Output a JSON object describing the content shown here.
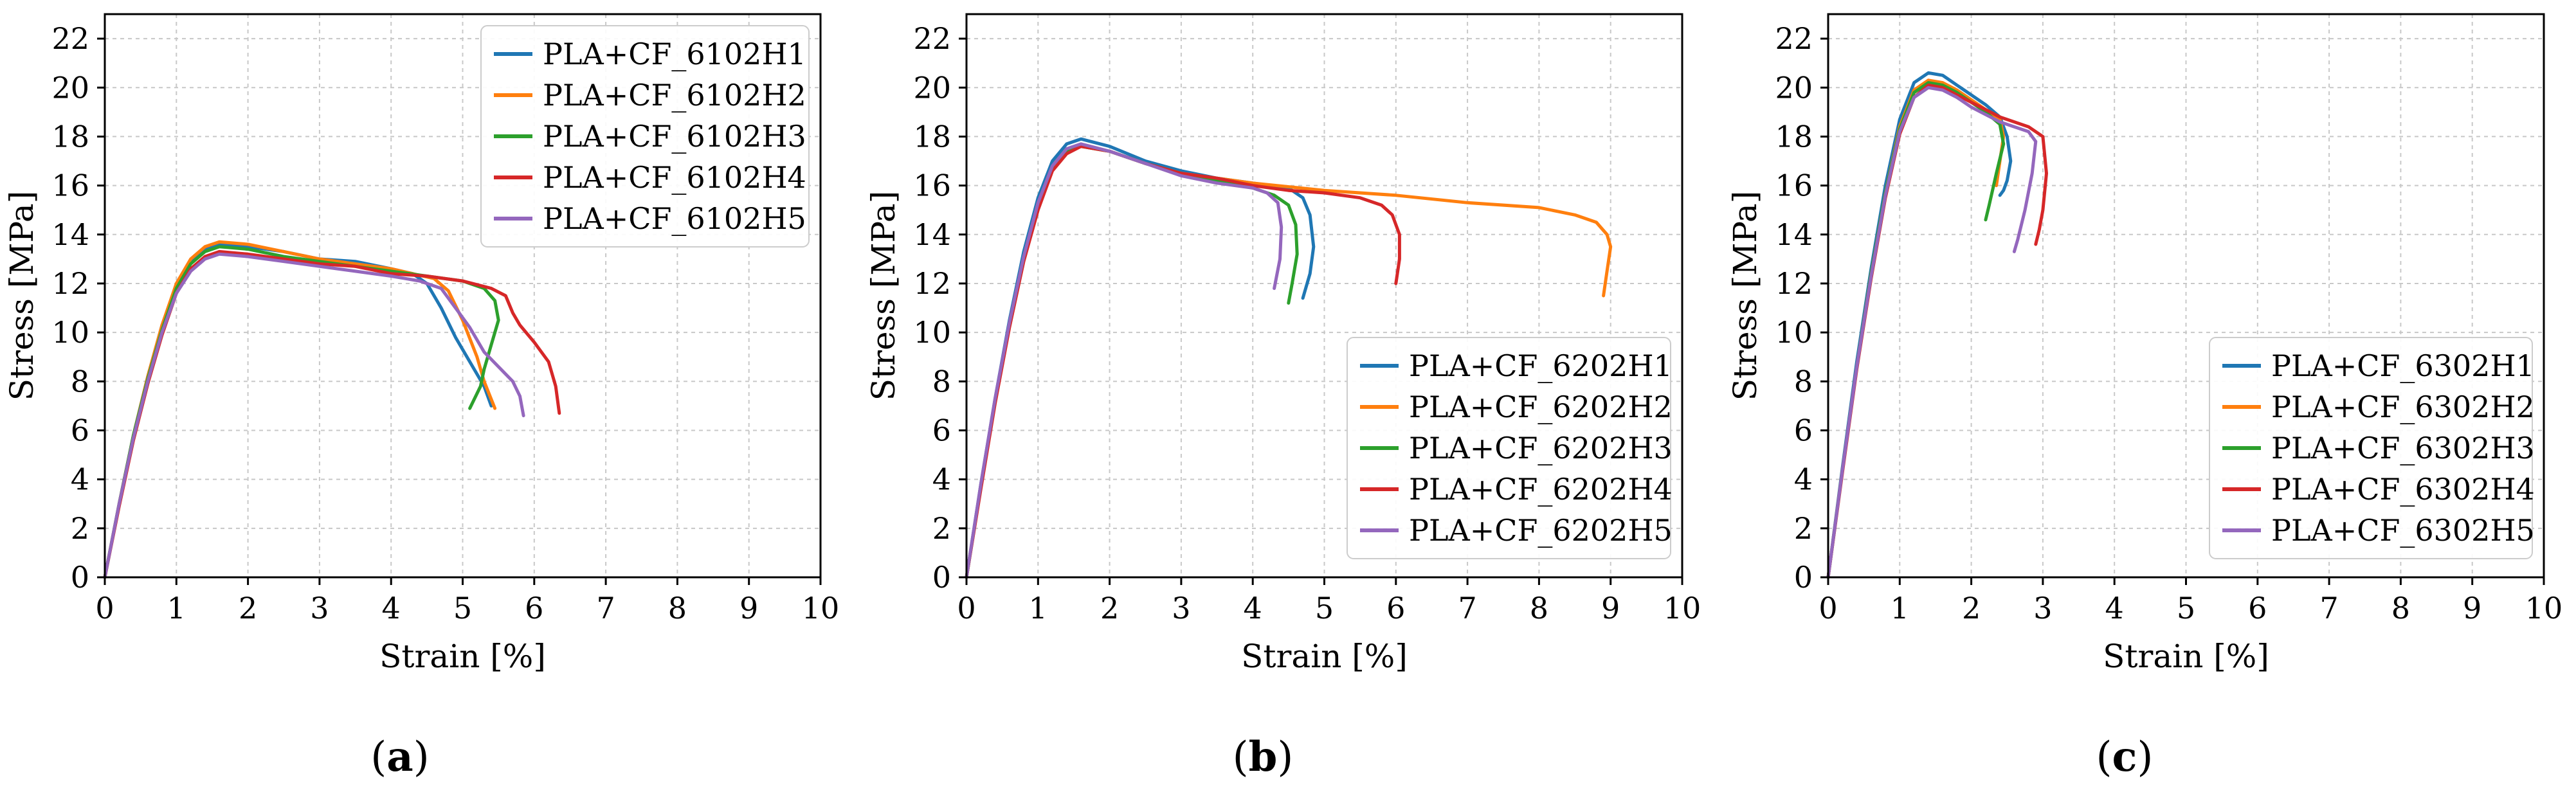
{
  "chart_data": [
    {
      "type": "line",
      "panel": "a",
      "xlabel": "Strain [%]",
      "ylabel": "Stress [MPa]",
      "xlim": [
        0,
        10
      ],
      "ylim": [
        0,
        23
      ],
      "xticks": [
        0,
        1,
        2,
        3,
        4,
        5,
        6,
        7,
        8,
        9,
        10
      ],
      "yticks": [
        0,
        2,
        4,
        6,
        8,
        10,
        12,
        14,
        16,
        18,
        20,
        22
      ],
      "grid": true,
      "legend_position": "top-right",
      "series": [
        {
          "name": "PLA+CF_6102H1",
          "color": "#1f77b4",
          "x": [
            0,
            0.2,
            0.4,
            0.6,
            0.8,
            1.0,
            1.2,
            1.4,
            1.6,
            2.0,
            2.5,
            3.0,
            3.5,
            4.0,
            4.3,
            4.5,
            4.7,
            4.9,
            5.1,
            5.3,
            5.4
          ],
          "y": [
            0,
            3.0,
            5.8,
            8.2,
            10.3,
            11.9,
            12.9,
            13.4,
            13.6,
            13.5,
            13.3,
            13.0,
            12.9,
            12.6,
            12.4,
            12.0,
            11.0,
            9.8,
            8.8,
            7.8,
            7.0
          ]
        },
        {
          "name": "PLA+CF_6102H2",
          "color": "#ff7f0e",
          "x": [
            0,
            0.2,
            0.4,
            0.6,
            0.8,
            1.0,
            1.2,
            1.4,
            1.6,
            2.0,
            2.5,
            3.0,
            3.5,
            4.0,
            4.3,
            4.6,
            4.8,
            5.0,
            5.2,
            5.3,
            5.45
          ],
          "y": [
            0,
            3.0,
            5.8,
            8.2,
            10.3,
            12.0,
            13.0,
            13.5,
            13.7,
            13.6,
            13.3,
            13.0,
            12.8,
            12.6,
            12.4,
            12.2,
            11.7,
            10.5,
            9.0,
            8.0,
            6.9
          ]
        },
        {
          "name": "PLA+CF_6102H3",
          "color": "#2ca02c",
          "x": [
            0,
            0.2,
            0.4,
            0.6,
            0.8,
            1.0,
            1.2,
            1.4,
            1.6,
            2.0,
            2.5,
            3.0,
            3.5,
            4.0,
            4.5,
            5.0,
            5.3,
            5.45,
            5.5,
            5.4,
            5.3,
            5.25,
            5.1
          ],
          "y": [
            0,
            3.0,
            5.8,
            8.1,
            10.1,
            11.8,
            12.8,
            13.3,
            13.5,
            13.4,
            13.1,
            12.9,
            12.7,
            12.5,
            12.3,
            12.1,
            11.8,
            11.3,
            10.5,
            9.5,
            8.5,
            7.8,
            6.9
          ]
        },
        {
          "name": "PLA+CF_6102H4",
          "color": "#d62728",
          "x": [
            0,
            0.2,
            0.4,
            0.6,
            0.8,
            1.0,
            1.2,
            1.4,
            1.6,
            2.0,
            2.5,
            3.0,
            3.5,
            4.0,
            4.5,
            5.0,
            5.4,
            5.6,
            5.7,
            5.8,
            6.0,
            6.2,
            6.3,
            6.35
          ],
          "y": [
            0,
            2.9,
            5.6,
            7.9,
            9.9,
            11.6,
            12.6,
            13.1,
            13.3,
            13.2,
            13.0,
            12.8,
            12.7,
            12.4,
            12.3,
            12.1,
            11.8,
            11.5,
            10.8,
            10.3,
            9.6,
            8.8,
            7.8,
            6.7
          ]
        },
        {
          "name": "PLA+CF_6102H5",
          "color": "#9467bd",
          "x": [
            0,
            0.2,
            0.4,
            0.6,
            0.8,
            1.0,
            1.2,
            1.4,
            1.6,
            2.0,
            2.5,
            3.0,
            3.5,
            4.0,
            4.4,
            4.7,
            4.9,
            5.1,
            5.3,
            5.5,
            5.7,
            5.8,
            5.85
          ],
          "y": [
            0,
            3.0,
            5.7,
            8.0,
            10.0,
            11.6,
            12.5,
            13.0,
            13.2,
            13.1,
            12.9,
            12.7,
            12.5,
            12.3,
            12.1,
            11.8,
            11.0,
            10.2,
            9.2,
            8.6,
            8.0,
            7.4,
            6.6
          ]
        }
      ]
    },
    {
      "type": "line",
      "panel": "b",
      "xlabel": "Strain [%]",
      "ylabel": "Stress [MPa]",
      "xlim": [
        0,
        10
      ],
      "ylim": [
        0,
        23
      ],
      "xticks": [
        0,
        1,
        2,
        3,
        4,
        5,
        6,
        7,
        8,
        9,
        10
      ],
      "yticks": [
        0,
        2,
        4,
        6,
        8,
        10,
        12,
        14,
        16,
        18,
        20,
        22
      ],
      "grid": true,
      "legend_position": "bottom-right",
      "series": [
        {
          "name": "PLA+CF_6202H1",
          "color": "#1f77b4",
          "x": [
            0,
            0.2,
            0.4,
            0.6,
            0.8,
            1.0,
            1.2,
            1.4,
            1.6,
            2.0,
            2.5,
            3.0,
            3.5,
            4.0,
            4.5,
            4.7,
            4.8,
            4.85,
            4.8,
            4.7
          ],
          "y": [
            0,
            3.8,
            7.3,
            10.5,
            13.3,
            15.5,
            17.0,
            17.7,
            17.9,
            17.6,
            17.0,
            16.6,
            16.3,
            16.1,
            15.9,
            15.5,
            14.8,
            13.5,
            12.4,
            11.4
          ]
        },
        {
          "name": "PLA+CF_6202H2",
          "color": "#ff7f0e",
          "x": [
            0,
            0.2,
            0.4,
            0.6,
            0.8,
            1.0,
            1.2,
            1.4,
            1.6,
            2.0,
            2.5,
            3.0,
            3.5,
            4.0,
            5.0,
            6.0,
            7.0,
            8.0,
            8.5,
            8.8,
            8.95,
            9.0,
            8.95,
            8.9
          ],
          "y": [
            0,
            3.7,
            7.2,
            10.3,
            13.0,
            15.2,
            16.7,
            17.4,
            17.6,
            17.4,
            16.9,
            16.5,
            16.3,
            16.1,
            15.8,
            15.6,
            15.3,
            15.1,
            14.8,
            14.5,
            14.0,
            13.5,
            12.5,
            11.5
          ]
        },
        {
          "name": "PLA+CF_6202H3",
          "color": "#2ca02c",
          "x": [
            0,
            0.2,
            0.4,
            0.6,
            0.8,
            1.0,
            1.2,
            1.4,
            1.6,
            2.0,
            2.5,
            3.0,
            3.5,
            4.0,
            4.3,
            4.5,
            4.6,
            4.62,
            4.55,
            4.5
          ],
          "y": [
            0,
            3.7,
            7.2,
            10.3,
            13.0,
            15.2,
            16.7,
            17.4,
            17.6,
            17.4,
            16.9,
            16.5,
            16.2,
            15.9,
            15.6,
            15.2,
            14.4,
            13.2,
            12.0,
            11.2
          ]
        },
        {
          "name": "PLA+CF_6202H4",
          "color": "#d62728",
          "x": [
            0,
            0.2,
            0.4,
            0.6,
            0.8,
            1.0,
            1.2,
            1.4,
            1.6,
            2.0,
            2.5,
            3.0,
            3.5,
            4.0,
            4.5,
            5.0,
            5.5,
            5.8,
            5.95,
            6.05,
            6.05,
            6.0
          ],
          "y": [
            0,
            3.6,
            7.1,
            10.2,
            12.9,
            15.0,
            16.6,
            17.3,
            17.6,
            17.4,
            16.9,
            16.5,
            16.3,
            16.0,
            15.8,
            15.7,
            15.5,
            15.2,
            14.8,
            14.0,
            13.0,
            12.0
          ]
        },
        {
          "name": "PLA+CF_6202H5",
          "color": "#9467bd",
          "x": [
            0,
            0.2,
            0.4,
            0.6,
            0.8,
            1.0,
            1.2,
            1.4,
            1.6,
            2.0,
            2.5,
            3.0,
            3.5,
            4.0,
            4.2,
            4.35,
            4.4,
            4.38,
            4.3
          ],
          "y": [
            0,
            3.8,
            7.3,
            10.4,
            13.1,
            15.3,
            16.8,
            17.5,
            17.7,
            17.4,
            16.9,
            16.4,
            16.1,
            15.9,
            15.7,
            15.3,
            14.3,
            13.0,
            11.8
          ]
        }
      ]
    },
    {
      "type": "line",
      "panel": "c",
      "xlabel": "Strain [%]",
      "ylabel": "Stress [MPa]",
      "xlim": [
        0,
        10
      ],
      "ylim": [
        0,
        23
      ],
      "xticks": [
        0,
        1,
        2,
        3,
        4,
        5,
        6,
        7,
        8,
        9,
        10
      ],
      "yticks": [
        0,
        2,
        4,
        6,
        8,
        10,
        12,
        14,
        16,
        18,
        20,
        22
      ],
      "grid": true,
      "legend_position": "bottom-right",
      "series": [
        {
          "name": "PLA+CF_6302H1",
          "color": "#1f77b4",
          "x": [
            0,
            0.2,
            0.4,
            0.6,
            0.8,
            1.0,
            1.2,
            1.4,
            1.6,
            1.8,
            2.0,
            2.2,
            2.4,
            2.5,
            2.55,
            2.5,
            2.45,
            2.4
          ],
          "y": [
            0,
            4.5,
            8.8,
            12.6,
            16.0,
            18.7,
            20.2,
            20.6,
            20.5,
            20.1,
            19.7,
            19.3,
            18.8,
            18.0,
            17.0,
            16.2,
            15.8,
            15.6
          ]
        },
        {
          "name": "PLA+CF_6302H2",
          "color": "#ff7f0e",
          "x": [
            0,
            0.2,
            0.4,
            0.6,
            0.8,
            1.0,
            1.2,
            1.4,
            1.6,
            1.8,
            2.0,
            2.2,
            2.4,
            2.45,
            2.4,
            2.35
          ],
          "y": [
            0,
            4.4,
            8.6,
            12.4,
            15.7,
            18.4,
            19.9,
            20.3,
            20.2,
            19.9,
            19.5,
            19.1,
            18.7,
            18.0,
            17.0,
            16.0
          ]
        },
        {
          "name": "PLA+CF_6302H3",
          "color": "#2ca02c",
          "x": [
            0,
            0.2,
            0.4,
            0.6,
            0.8,
            1.0,
            1.2,
            1.4,
            1.6,
            1.8,
            2.0,
            2.2,
            2.4,
            2.45,
            2.35,
            2.25,
            2.2
          ],
          "y": [
            0,
            4.4,
            8.6,
            12.4,
            15.7,
            18.3,
            19.8,
            20.2,
            20.1,
            19.8,
            19.4,
            19.0,
            18.5,
            17.7,
            16.5,
            15.2,
            14.6
          ]
        },
        {
          "name": "PLA+CF_6302H4",
          "color": "#d62728",
          "x": [
            0,
            0.2,
            0.4,
            0.6,
            0.8,
            1.0,
            1.2,
            1.4,
            1.6,
            1.8,
            2.0,
            2.2,
            2.4,
            2.6,
            2.8,
            3.0,
            3.05,
            3.0,
            2.95,
            2.9
          ],
          "y": [
            0,
            4.3,
            8.5,
            12.2,
            15.5,
            18.1,
            19.6,
            20.1,
            20.0,
            19.7,
            19.4,
            19.1,
            18.8,
            18.6,
            18.4,
            18.0,
            16.5,
            15.0,
            14.2,
            13.6
          ]
        },
        {
          "name": "PLA+CF_6302H5",
          "color": "#9467bd",
          "x": [
            0,
            0.2,
            0.4,
            0.6,
            0.8,
            1.0,
            1.2,
            1.4,
            1.6,
            1.8,
            2.0,
            2.2,
            2.4,
            2.6,
            2.8,
            2.9,
            2.85,
            2.75,
            2.65,
            2.6
          ],
          "y": [
            0,
            4.4,
            8.6,
            12.3,
            15.6,
            18.2,
            19.6,
            20.0,
            19.9,
            19.6,
            19.2,
            18.9,
            18.6,
            18.4,
            18.2,
            17.8,
            16.5,
            15.0,
            13.8,
            13.3
          ]
        }
      ]
    }
  ],
  "panel_labels": [
    "(a)",
    "(b)",
    "(c)"
  ],
  "panels": [
    {
      "open": "(",
      "letter": "a",
      "close": ")"
    },
    {
      "open": "(",
      "letter": "b",
      "close": ")"
    },
    {
      "open": "(",
      "letter": "c",
      "close": ")"
    }
  ]
}
